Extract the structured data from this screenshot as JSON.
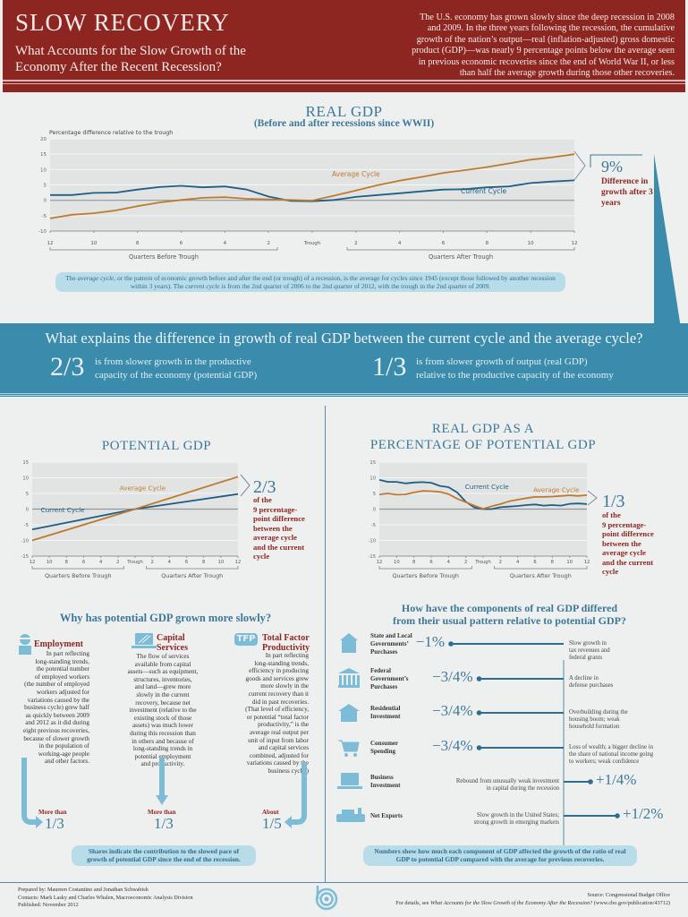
{
  "header": {
    "title": "SLOW RECOVERY",
    "subtitle": "What Accounts for the Slow Growth of the Economy After the Recent Recession?",
    "intro": "The U.S. economy has grown slowly since the deep recession in 2008 and 2009. In the three years following the recession, the cumulative growth of the nation’s output—real (inflation-adjusted) gross domestic product (GDP)—was nearly 9 percentage points below the average seen in previous economic recoveries since the end of World War II, or less than half the average growth during those other recoveries."
  },
  "colors": {
    "header_bg": "#8d2621",
    "band_bg": "#3b8bac",
    "current_cycle": "#1f5f86",
    "average_cycle": "#c07a30",
    "accent_red": "#8d2621",
    "accent_blue": "#3d7898"
  },
  "real_gdp": {
    "callout_value": "9%",
    "callout_text": "Difference in growth after 3 years",
    "note_part1": "The ",
    "note_avg_term": "average cycle",
    "note_part2": ", or the pattern of economic growth before and after the end (or trough) of a recession, is the average for cycles since 1945 (except those followed by another recession within 3 years). The ",
    "note_cur_term": "current cycle",
    "note_part3": " is from the 2nd quarter of 2006 to the 2nd quarter of 2012, with the trough in the 2nd quarter of 2009."
  },
  "band": {
    "question": "What explains the difference in growth of real GDP between the current cycle and the average cycle?",
    "left_fraction": "2/3",
    "left_text_1": "is from slower growth in the productive",
    "left_text_2": "capacity of the economy (potential GDP)",
    "right_fraction": "1/3",
    "right_text_1": "is from slower growth of output (real GDP)",
    "right_text_2": "relative to the productive capacity of the economy"
  },
  "potential_gdp": {
    "callout_value": "2/3",
    "callout_lines": [
      "of the",
      "9 percentage-",
      "point difference",
      "between the",
      "average cycle",
      "and the current",
      "cycle"
    ]
  },
  "ratio_gdp": {
    "callout_value": "1/3",
    "callout_lines": [
      "of the",
      "9 percentage-",
      "point difference",
      "between the",
      "average cycle",
      "and the current",
      "cycle"
    ]
  },
  "why": {
    "title": "Why has potential GDP grown more slowly?",
    "factors": [
      {
        "icon": "worker-icon",
        "head": [
          "Employment"
        ],
        "body": [
          "In part reflecting",
          "long-standing trends,",
          "the potential number",
          "of employed workers",
          "(the number of employed",
          "workers adjusted for",
          "variations caused by the",
          "business cycle) grew half",
          "as quickly between 2009",
          "and 2012 as it did during",
          "eight previous recoveries,",
          "because of slower growth",
          "in the population of",
          "working-age people",
          "and other factors."
        ],
        "share_label": "More than",
        "share_value": "1/3"
      },
      {
        "icon": "laptop-icon",
        "head": [
          "Capital",
          "Services"
        ],
        "body": [
          "The flow of services",
          "available from capital",
          "assets—such as equipment,",
          "structures, inventories,",
          "and land—grew more",
          "slowly in the current",
          "recovery, because net",
          "investment (relative to the",
          "existing stock of those",
          "assets) was much lower",
          "during this recession than",
          "in others and because of",
          "long-standing trends in",
          "potential employment",
          "and productivity."
        ],
        "share_label": "More than",
        "share_value": "1/3"
      },
      {
        "icon": "tfp-icon",
        "icon_text": "TFP",
        "head": [
          "Total Factor",
          "Productivity"
        ],
        "body": [
          "In part reflecting",
          "long-standing trends,",
          "efficiency in producing",
          "goods and services grew",
          "more slowly in the",
          "current recovery than it",
          "did in past recoveries.",
          "(That level of efficiency,",
          "or potential “total factor",
          "productivity,” is the",
          "average real output per",
          "unit of input from labor",
          "and capital services",
          "combined, adjusted for",
          "variations caused by the",
          "business cycle.)"
        ],
        "share_label": "About",
        "share_value": "1/5"
      }
    ],
    "note": "Shares indicate the contribution to the slowed pace of growth of potential GDP since the end of the recession."
  },
  "components": {
    "title_1": "How have the components of real GDP differed",
    "title_2": "from their usual pattern relative to potential GDP?",
    "items": [
      {
        "icon": "schoolhouse-icon",
        "name": [
          "State and Local",
          "Governments’",
          "Purchases"
        ],
        "value": "−1%",
        "effect": -1.0,
        "note": [
          "Slow growth in",
          "tax revenues and",
          "federal grants"
        ]
      },
      {
        "icon": "capitol-building-icon",
        "name": [
          "Federal",
          "Government’s",
          "Purchases"
        ],
        "value": "−3/4%",
        "effect": -0.75,
        "note": [
          "A decline in",
          "defense purchases"
        ]
      },
      {
        "icon": "house-icon",
        "name": [
          "Residential",
          "Investment"
        ],
        "value": "−3/4%",
        "effect": -0.75,
        "note": [
          "Overbuilding during the",
          "housing boom; weak",
          "household formation"
        ]
      },
      {
        "icon": "shopping-cart-icon",
        "name": [
          "Consumer",
          "Spending"
        ],
        "value": "−3/4%",
        "effect": -0.75,
        "note": [
          "Loss of wealth; a bigger decline in",
          "the share of national income going",
          "to workers; weak confidence"
        ]
      },
      {
        "icon": "laptop-icon",
        "name": [
          "Business",
          "Investment"
        ],
        "value": "+1/4%",
        "effect": 0.25,
        "note": [
          "Rebound from unusually weak investment",
          "in capital during the recession"
        ]
      },
      {
        "icon": "cargo-ship-icon",
        "name": [
          "Net Exports"
        ],
        "value": "+1/2%",
        "effect": 0.5,
        "note": [
          "Slow growth in the United States;",
          "strong growth in emerging markets"
        ]
      }
    ],
    "note": "Numbers show how much each component of GDP affected the growth of the ratio of real GDP to potential GDP compared with the average for previous recoveries."
  },
  "footer": {
    "left": [
      "Prepared by: Maureen Costantino and Jonathan Schwabish",
      "Contacts: Mark Lasky and Charles Whalen, Macroeconomic Analysis Division",
      "Published: November 2012"
    ],
    "right_1": "Source: Congressional Budget Office",
    "right_2_prefix": "For details, see ",
    "right_2_title": "What Accounts for the Slow Growth of the Economy After the Recession?",
    "right_2_suffix": " (www.cbo.gov/publication/43712)"
  },
  "chart_data": [
    {
      "type": "line",
      "title": "REAL GDP",
      "subtitle": "(Before and after recessions since WWII)",
      "ylabel": "Percentage difference relative to the trough",
      "xlabel_left": "Quarters Before Trough",
      "xlabel_right": "Quarters After Trough",
      "x": [
        -12,
        -11,
        -10,
        -9,
        -8,
        -7,
        -6,
        -5,
        -4,
        -3,
        -2,
        -1,
        0,
        1,
        2,
        3,
        4,
        5,
        6,
        7,
        8,
        9,
        10,
        11,
        12
      ],
      "x_tick_labels": [
        "12",
        "10",
        "8",
        "6",
        "4",
        "2",
        "Trough",
        "2",
        "4",
        "6",
        "8",
        "10",
        "12"
      ],
      "x_tick_values": [
        -12,
        -10,
        -8,
        -6,
        -4,
        -2,
        0,
        2,
        4,
        6,
        8,
        10,
        12
      ],
      "ylim": [
        -10,
        20
      ],
      "y_ticks": [
        -10,
        -5,
        0,
        5,
        10,
        15,
        20
      ],
      "grid": true,
      "series": [
        {
          "name": "Current Cycle",
          "values": [
            1.7,
            1.7,
            2.4,
            2.5,
            3.5,
            4.3,
            4.7,
            4.2,
            4.5,
            3.5,
            1.2,
            -0.2,
            -0.3,
            0.1,
            1.1,
            1.7,
            2.3,
            2.9,
            3.5,
            3.6,
            4.2,
            4.5,
            5.6,
            6.1,
            6.5
          ]
        },
        {
          "name": "Average Cycle",
          "values": [
            -5.9,
            -4.7,
            -4.2,
            -3.3,
            -1.9,
            -0.7,
            0.1,
            0.8,
            1.0,
            0.5,
            0.3,
            0.1,
            -0.1,
            1.5,
            3.2,
            4.9,
            6.4,
            7.6,
            8.9,
            9.8,
            10.8,
            12.0,
            13.2,
            14.0,
            15.0
          ]
        }
      ],
      "annotations": [
        "Average Cycle",
        "Current Cycle"
      ]
    },
    {
      "type": "line",
      "title": "POTENTIAL GDP",
      "xlabel_left": "Quarters Before Trough",
      "xlabel_right": "Quarters After Trough",
      "x": [
        -12,
        0,
        12
      ],
      "x_tick_labels": [
        "12",
        "10",
        "8",
        "6",
        "4",
        "2",
        "Trough",
        "2",
        "4",
        "6",
        "8",
        "10",
        "12"
      ],
      "x_tick_values": [
        -12,
        -10,
        -8,
        -6,
        -4,
        -2,
        0,
        2,
        4,
        6,
        8,
        10,
        12
      ],
      "ylim": [
        -15,
        15
      ],
      "y_ticks": [
        -15,
        -10,
        -5,
        0,
        5,
        10,
        15
      ],
      "grid": true,
      "series": [
        {
          "name": "Current Cycle",
          "values": [
            -6.5,
            0,
            4.8
          ]
        },
        {
          "name": "Average Cycle",
          "values": [
            -10.0,
            0,
            10.3
          ]
        }
      ],
      "annotations": [
        "Average Cycle",
        "Current Cycle"
      ]
    },
    {
      "type": "line",
      "title": "REAL GDP AS A PERCENTAGE OF POTENTIAL GDP",
      "xlabel_left": "Quarters Before Trough",
      "xlabel_right": "Quarters After Trough",
      "x": [
        -12,
        -11,
        -10,
        -9,
        -8,
        -7,
        -6,
        -5,
        -4,
        -3,
        -2,
        -1,
        0,
        1,
        2,
        3,
        4,
        5,
        6,
        7,
        8,
        9,
        10,
        11,
        12
      ],
      "x_tick_labels": [
        "12",
        "10",
        "8",
        "6",
        "4",
        "2",
        "Trough",
        "2",
        "4",
        "6",
        "8",
        "10",
        "12"
      ],
      "x_tick_values": [
        -12,
        -10,
        -8,
        -6,
        -4,
        -2,
        0,
        2,
        4,
        6,
        8,
        10,
        12
      ],
      "ylim": [
        -15,
        15
      ],
      "y_ticks": [
        -15,
        -10,
        -5,
        0,
        5,
        10,
        15
      ],
      "grid": true,
      "series": [
        {
          "name": "Current Cycle",
          "values": [
            9.3,
            8.7,
            8.7,
            8.2,
            8.5,
            8.6,
            8.4,
            7.4,
            7.0,
            5.3,
            2.3,
            0.5,
            0.0,
            0.0,
            0.6,
            0.8,
            1.0,
            1.3,
            1.5,
            1.1,
            1.3,
            1.1,
            1.7,
            1.8,
            1.6
          ]
        },
        {
          "name": "Average Cycle",
          "values": [
            4.7,
            5.0,
            4.6,
            4.7,
            5.3,
            5.8,
            5.7,
            5.5,
            4.8,
            3.3,
            2.2,
            1.1,
            0.1,
            0.9,
            1.6,
            2.5,
            3.0,
            3.5,
            3.9,
            3.9,
            4.0,
            4.2,
            4.4,
            4.2,
            4.5
          ]
        }
      ],
      "annotations": [
        "Current Cycle",
        "Average Cycle"
      ]
    }
  ]
}
